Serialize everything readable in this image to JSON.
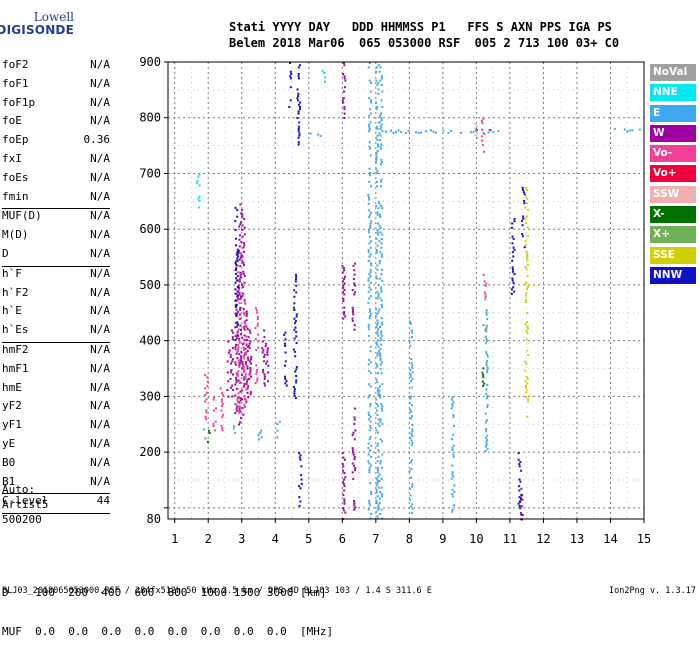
{
  "logo": {
    "line1": "Lowell",
    "line2": "DIGISONDE"
  },
  "header": {
    "line1": "Stati YYYY DAY   DDD HHMMSS P1   FFS S AXN PPS IGA PS",
    "line2": "Belem 2018 Mar06  065 053000 RSF  005 2 713 100 03+ C0"
  },
  "params": [
    {
      "label": "foF2",
      "value": "N/A"
    },
    {
      "label": "foF1",
      "value": "N/A"
    },
    {
      "label": "foF1p",
      "value": "N/A"
    },
    {
      "label": "foE",
      "value": "N/A"
    },
    {
      "label": "foEp",
      "value": "0.36"
    },
    {
      "label": "fxI",
      "value": "N/A"
    },
    {
      "label": "foEs",
      "value": "N/A"
    },
    {
      "label": "fmin",
      "value": "N/A"
    },
    {
      "sep": true
    },
    {
      "label": "MUF(D)",
      "value": "N/A"
    },
    {
      "label": "M(D)",
      "value": "N/A"
    },
    {
      "label": "D",
      "value": "N/A"
    },
    {
      "sep": true
    },
    {
      "label": "h`F",
      "value": "N/A"
    },
    {
      "label": "h`F2",
      "value": "N/A"
    },
    {
      "label": "h`E",
      "value": "N/A"
    },
    {
      "label": "h`Es",
      "value": "N/A"
    },
    {
      "sep": true
    },
    {
      "label": "hmF2",
      "value": "N/A"
    },
    {
      "label": "hmF1",
      "value": "N/A"
    },
    {
      "label": "hmE",
      "value": "N/A"
    },
    {
      "label": "yF2",
      "value": "N/A"
    },
    {
      "label": "yF1",
      "value": "N/A"
    },
    {
      "label": "yE",
      "value": "N/A"
    },
    {
      "label": "B0",
      "value": "N/A"
    },
    {
      "label": "B1",
      "value": "N/A"
    },
    {
      "sep": true
    },
    {
      "label": "C-level",
      "value": "44"
    },
    {
      "sep": true
    }
  ],
  "auto": {
    "line1": "Auto:",
    "line2": "Artist5",
    "line3": "500200"
  },
  "legend": [
    {
      "label": "NoVal",
      "color": "#a0a0a0"
    },
    {
      "label": "NNE",
      "color": "#00e8f0"
    },
    {
      "label": "E",
      "color": "#40a8f0"
    },
    {
      "label": "W",
      "color": "#a000a0"
    },
    {
      "label": "Vo-",
      "color": "#f04098"
    },
    {
      "label": "Vo+",
      "color": "#f0003c"
    },
    {
      "label": "SSW",
      "color": "#f0b0b0"
    },
    {
      "label": "X-",
      "color": "#007000"
    },
    {
      "label": "X+",
      "color": "#70b058"
    },
    {
      "label": "SSE",
      "color": "#d0d000"
    },
    {
      "label": "NNW",
      "color": "#1010c8"
    }
  ],
  "bottom": {
    "d_line": "D    100  200  400  600  800  1000 1500 3000 [km]",
    "muf_line": "MUF  0.0  0.0  0.0  0.0  0.0  0.0  0.0  0.0  [MHz]"
  },
  "footer": {
    "left": "BLJ03_2018065053000.RSF / 284fx512h 50 kHz 2.5 km / DPS-4D BLJ03 103 / 1.4 S 311.6 E",
    "right": "Ion2Png v. 1.3.17"
  },
  "chart_data": {
    "type": "scatter",
    "xlim": [
      0.8,
      15
    ],
    "ylim": [
      80,
      900
    ],
    "x_ticks": [
      1,
      2,
      3,
      4,
      5,
      6,
      7,
      8,
      9,
      10,
      11,
      12,
      13,
      14,
      15
    ],
    "y_ticks": [
      100,
      200,
      300,
      400,
      500,
      600,
      700,
      800,
      900
    ],
    "y_tick_labels": [
      "",
      "200",
      "300",
      "400",
      "500",
      "600",
      "700",
      "800",
      "900"
    ],
    "y_edge_label": "80",
    "grid": true,
    "legend_position": "right",
    "series": [
      {
        "ref": "W",
        "color": "#a000a0",
        "columns": [
          {
            "x": 2.95,
            "y": [
              250,
              650
            ]
          },
          {
            "x": 3.05,
            "y": [
              260,
              640
            ]
          },
          {
            "x": 2.85,
            "y": [
              270,
              560
            ]
          },
          {
            "x": 3.15,
            "y": [
              290,
              470
            ]
          },
          {
            "x": 3.25,
            "y": [
              300,
              420
            ]
          },
          {
            "x": 2.7,
            "y": [
              300,
              420
            ]
          },
          {
            "x": 2.6,
            "y": [
              300,
              400
            ]
          },
          {
            "x": 3.65,
            "y": [
              320,
              420
            ]
          },
          {
            "x": 3.75,
            "y": [
              320,
              400
            ]
          },
          {
            "x": 6.05,
            "y": [
              440,
              540
            ]
          },
          {
            "x": 6.35,
            "y": [
              420,
              540
            ]
          },
          {
            "x": 6.05,
            "y": [
              80,
              200
            ]
          },
          {
            "x": 6.35,
            "y": [
              80,
              280
            ]
          },
          {
            "x": 6.05,
            "y": [
              800,
              900
            ]
          },
          {
            "x": 11.35,
            "y": [
              80,
              140
            ]
          }
        ]
      },
      {
        "ref": "Vo-",
        "color": "#f04098",
        "columns": [
          {
            "x": 2.9,
            "y": [
              270,
              560
            ]
          },
          {
            "x": 3.1,
            "y": [
              280,
              480
            ]
          },
          {
            "x": 2.4,
            "y": [
              230,
              320
            ]
          },
          {
            "x": 2.2,
            "y": [
              240,
              300
            ]
          },
          {
            "x": 1.95,
            "y": [
              260,
              340
            ]
          },
          {
            "x": 3.45,
            "y": [
              320,
              460
            ]
          },
          {
            "x": 10.2,
            "y": [
              740,
              800
            ]
          },
          {
            "x": 10.25,
            "y": [
              480,
              520
            ]
          }
        ]
      },
      {
        "ref": "Vo+",
        "color": "#f0003c",
        "columns": [
          {
            "x": 10.0,
            "y": [
              770,
              780
            ]
          },
          {
            "x": 10.4,
            "y": [
              770,
              780
            ]
          },
          {
            "x": 10.65,
            "y": [
              770,
              780
            ]
          }
        ]
      },
      {
        "ref": "E",
        "color": "#40a8f0",
        "columns": [
          {
            "x": 6.82,
            "y": [
              80,
              900
            ]
          },
          {
            "x": 7.05,
            "y": [
              80,
              900
            ]
          },
          {
            "x": 7.15,
            "y": [
              80,
              900
            ]
          },
          {
            "x": 8.05,
            "y": [
              80,
              440
            ]
          },
          {
            "x": 9.3,
            "y": [
              80,
              300
            ]
          },
          {
            "x": 10.3,
            "y": [
              200,
              480
            ]
          },
          {
            "x": 4.1,
            "y": [
              220,
              260
            ]
          },
          {
            "x": 1.9,
            "y": [
              220,
              250
            ]
          },
          {
            "x": 2.8,
            "y": [
              230,
              260
            ]
          },
          {
            "x": 3.55,
            "y": [
              220,
              260
            ]
          }
        ]
      },
      {
        "ref": "NNE",
        "color": "#00e8f0",
        "columns": [
          {
            "x": 4.8,
            "y": [
              780,
              790
            ]
          },
          {
            "x": 1.7,
            "y": [
              640,
              700
            ]
          },
          {
            "x": 5.45,
            "y": [
              860,
              890
            ]
          }
        ]
      },
      {
        "ref": "NNW",
        "color": "#1010c8",
        "columns": [
          {
            "x": 4.45,
            "y": [
              820,
              900
            ]
          },
          {
            "x": 4.7,
            "y": [
              750,
              900
            ]
          },
          {
            "x": 4.3,
            "y": [
              320,
              420
            ]
          },
          {
            "x": 4.6,
            "y": [
              280,
              520
            ]
          },
          {
            "x": 2.85,
            "y": [
              400,
              640
            ]
          },
          {
            "x": 4.75,
            "y": [
              100,
              200
            ]
          },
          {
            "x": 11.1,
            "y": [
              480,
              620
            ]
          },
          {
            "x": 11.4,
            "y": [
              560,
              680
            ]
          },
          {
            "x": 11.3,
            "y": [
              80,
              200
            ]
          }
        ]
      },
      {
        "ref": "SSE",
        "color": "#d0d000",
        "columns": [
          {
            "x": 11.5,
            "y": [
              260,
              680
            ]
          }
        ]
      },
      {
        "ref": "X-",
        "color": "#007000",
        "columns": [
          {
            "x": 10.2,
            "y": [
              320,
              360
            ]
          },
          {
            "x": 2.0,
            "y": [
              220,
              240
            ]
          }
        ]
      },
      {
        "ref": "X+",
        "color": "#70b058",
        "columns": [
          {
            "x": 10.25,
            "y": [
              400,
              430
            ]
          }
        ]
      },
      {
        "ref": "SSW",
        "color": "#f0b0b0",
        "columns": [
          {
            "x": 10.0,
            "y": [
              760,
              790
            ]
          }
        ]
      },
      {
        "ref": "E-band-line",
        "color": "#40a8f0",
        "horizontal": [
          {
            "y": 775,
            "x": [
              6.9,
              10.8
            ]
          },
          {
            "y": 770,
            "x": [
              4.95,
              5.4
            ]
          },
          {
            "y": 778,
            "x": [
              14.1,
              15
            ]
          }
        ]
      }
    ]
  }
}
